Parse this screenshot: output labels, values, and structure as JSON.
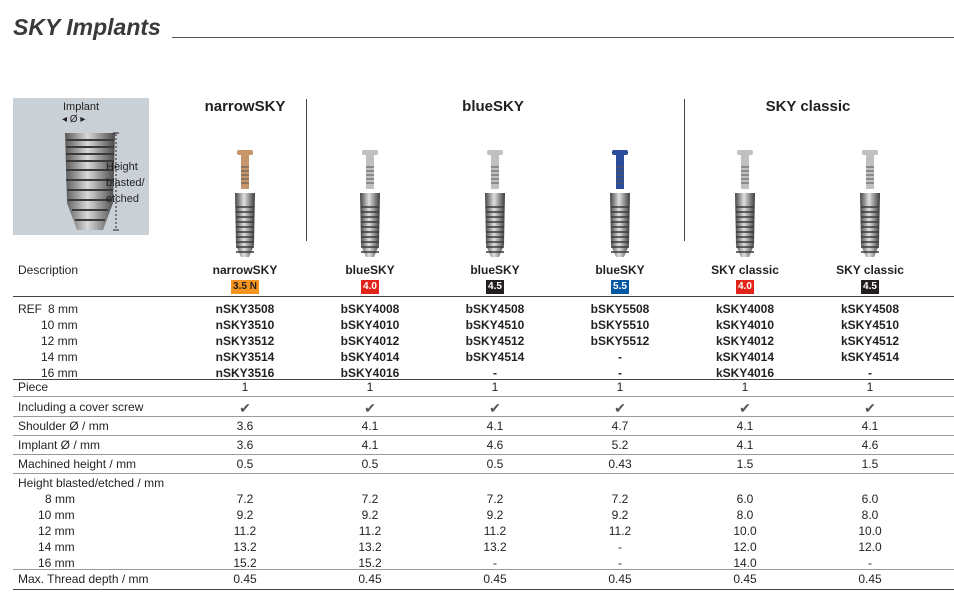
{
  "title": "SKY Implants",
  "diagram": {
    "implant_label": "Implant",
    "diameter_label": "◂  Ø  ▸",
    "height_label_1": "Height",
    "height_label_2": "blasted/",
    "height_label_3": "etched"
  },
  "groups": [
    "narrowSKY",
    "blueSKY",
    "SKY classic"
  ],
  "columns": [
    {
      "name": "narrowSKY",
      "badge": "3.5 N",
      "badge_bg": "#f7941d",
      "badge_fg": "#231f20",
      "head_color": "#c8956a",
      "refs": [
        "nSKY3508",
        "nSKY3510",
        "nSKY3512",
        "nSKY3514",
        "nSKY3516"
      ],
      "piece": "1",
      "cover": "✔",
      "shoulder": "3.6",
      "implant": "3.6",
      "machined": "0.5",
      "heights": [
        "7.2",
        "9.2",
        "11.2",
        "13.2",
        "15.2"
      ],
      "thread": "0.45"
    },
    {
      "name": "blueSKY",
      "badge": "4.0",
      "badge_bg": "#e2231a",
      "badge_fg": "#ffffff",
      "head_color": "#c0c0c0",
      "refs": [
        "bSKY4008",
        "bSKY4010",
        "bSKY4012",
        "bSKY4014",
        "bSKY4016"
      ],
      "piece": "1",
      "cover": "✔",
      "shoulder": "4.1",
      "implant": "4.1",
      "machined": "0.5",
      "heights": [
        "7.2",
        "9.2",
        "11.2",
        "13.2",
        "15.2"
      ],
      "thread": "0.45"
    },
    {
      "name": "blueSKY",
      "badge": "4.5",
      "badge_bg": "#231f20",
      "badge_fg": "#ffffff",
      "head_color": "#c0c0c0",
      "refs": [
        "bSKY4508",
        "bSKY4510",
        "bSKY4512",
        "bSKY4514",
        "-"
      ],
      "piece": "1",
      "cover": "✔",
      "shoulder": "4.1",
      "implant": "4.6",
      "machined": "0.5",
      "heights": [
        "7.2",
        "9.2",
        "11.2",
        "13.2",
        "-"
      ],
      "thread": "0.45"
    },
    {
      "name": "blueSKY",
      "badge": "5.5",
      "badge_bg": "#0058a3",
      "badge_fg": "#ffffff",
      "head_color": "#2a4c9a",
      "refs": [
        "bSKY5508",
        "bSKY5510",
        "bSKY5512",
        "-",
        "-"
      ],
      "piece": "1",
      "cover": "✔",
      "shoulder": "4.7",
      "implant": "5.2",
      "machined": "0.43",
      "heights": [
        "7.2",
        "9.2",
        "11.2",
        "-",
        "-"
      ],
      "thread": "0.45"
    },
    {
      "name": "SKY classic",
      "badge": "4.0",
      "badge_bg": "#e2231a",
      "badge_fg": "#ffffff",
      "head_color": "#c0c0c0",
      "refs": [
        "kSKY4008",
        "kSKY4010",
        "kSKY4012",
        "kSKY4014",
        "kSKY4016"
      ],
      "piece": "1",
      "cover": "✔",
      "shoulder": "4.1",
      "implant": "4.1",
      "machined": "1.5",
      "heights": [
        "6.0",
        "8.0",
        "10.0",
        "12.0",
        "14.0"
      ],
      "thread": "0.45"
    },
    {
      "name": "SKY classic",
      "badge": "4.5",
      "badge_bg": "#231f20",
      "badge_fg": "#ffffff",
      "head_color": "#c0c0c0",
      "refs": [
        "kSKY4508",
        "kSKY4510",
        "kSKY4512",
        "kSKY4514",
        "-"
      ],
      "piece": "1",
      "cover": "✔",
      "shoulder": "4.1",
      "implant": "4.6",
      "machined": "1.5",
      "heights": [
        "6.0",
        "8.0",
        "10.0",
        "12.0",
        "-"
      ],
      "thread": "0.45"
    }
  ],
  "labels": {
    "description": "Description",
    "ref": "REF",
    "ref_sub": [
      "8 mm",
      "10 mm",
      "12 mm",
      "14 mm",
      "16 mm"
    ],
    "piece": "Piece",
    "cover": "Including a cover screw",
    "shoulder": "Shoulder Ø / mm",
    "implant": "Implant Ø / mm",
    "machined": "Machined height / mm",
    "height": "Height blasted/etched / mm",
    "height_sub": [
      "8 mm",
      "10 mm",
      "12 mm",
      "14 mm",
      "16 mm"
    ],
    "thread": "Max. Thread depth / mm"
  }
}
